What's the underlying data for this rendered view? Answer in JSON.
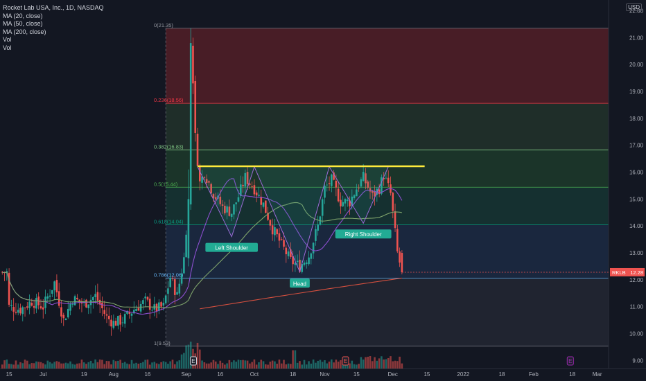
{
  "legend": {
    "title": "Rocket Lab USA, Inc., 1D, NASDAQ",
    "indicators": [
      "MA (20, close)",
      "MA (50, close)",
      "MA (200, close)",
      "Vol",
      "Vol"
    ]
  },
  "currency": "USD",
  "chart_data": {
    "type": "candlestick",
    "symbol": "RKLB",
    "last_price": "12.28",
    "ylim": [
      8.7,
      22.4
    ],
    "price_ticks": [
      "22.00",
      "21.00",
      "20.00",
      "19.00",
      "18.00",
      "17.00",
      "16.00",
      "15.00",
      "14.00",
      "13.00",
      "12.00",
      "11.00",
      "10.00",
      "9.00"
    ],
    "x_ticks": [
      {
        "label": "15",
        "day": 0
      },
      {
        "label": "Jul",
        "day": 15
      },
      {
        "label": "19",
        "day": 33
      },
      {
        "label": "Aug",
        "day": 46
      },
      {
        "label": "16",
        "day": 61
      },
      {
        "label": "Sep",
        "day": 78
      },
      {
        "label": "16",
        "day": 93
      },
      {
        "label": "Oct",
        "day": 108
      },
      {
        "label": "18",
        "day": 125
      },
      {
        "label": "Nov",
        "day": 139
      },
      {
        "label": "15",
        "day": 153
      },
      {
        "label": "Dec",
        "day": 169
      },
      {
        "label": "15",
        "day": 184
      },
      {
        "label": "2022",
        "day": 200
      },
      {
        "label": "18",
        "day": 217
      },
      {
        "label": "Feb",
        "day": 231
      },
      {
        "label": "18",
        "day": 248
      },
      {
        "label": "Mar",
        "day": 259
      }
    ],
    "x_range_days": [
      -4,
      264
    ],
    "fib_levels": [
      {
        "label": "0(21.35)",
        "value": 21.35
      },
      {
        "label": "0.236(18.56)",
        "value": 18.56
      },
      {
        "label": "0.382(16.83)",
        "value": 16.83
      },
      {
        "label": "0.5(15.44)",
        "value": 15.44
      },
      {
        "label": "0.618(14.04)",
        "value": 14.04
      },
      {
        "label": "0.786(12.06)",
        "value": 12.06
      },
      {
        "label": "1(9.53)",
        "value": 9.53
      }
    ],
    "fib_zone_colors": [
      "#5b2028",
      "#24372c",
      "#1f3f2c",
      "#173a36",
      "#1d2d48",
      "#262a36"
    ],
    "neckline": {
      "value": 16.22,
      "from_day": 83,
      "to_day": 183,
      "color": "#ffeb3b"
    },
    "annotations": [
      {
        "label": "Left Shoulder",
        "day": 98,
        "value": 13.55
      },
      {
        "label": "Head",
        "day": 128,
        "value": 12.22
      },
      {
        "label": "Right Shoulder",
        "day": 156,
        "value": 14.05
      }
    ],
    "pattern_path": [
      {
        "day": 83,
        "value": 16.2
      },
      {
        "day": 98,
        "value": 13.6
      },
      {
        "day": 108,
        "value": 16.2
      },
      {
        "day": 128,
        "value": 12.3
      },
      {
        "day": 141,
        "value": 16.2
      },
      {
        "day": 156,
        "value": 14.1
      },
      {
        "day": 167,
        "value": 16.2
      }
    ],
    "anchors": [
      {
        "day": 0,
        "value": 11.0
      },
      {
        "day": 5,
        "value": 10.9
      },
      {
        "day": 10,
        "value": 11.2
      },
      {
        "day": 15,
        "value": 11.0
      },
      {
        "day": 20,
        "value": 11.9
      },
      {
        "day": 24,
        "value": 10.5
      },
      {
        "day": 28,
        "value": 11.3
      },
      {
        "day": 33,
        "value": 11.1
      },
      {
        "day": 38,
        "value": 11.4
      },
      {
        "day": 43,
        "value": 10.6
      },
      {
        "day": 46,
        "value": 10.4
      },
      {
        "day": 50,
        "value": 10.5
      },
      {
        "day": 55,
        "value": 10.9
      },
      {
        "day": 60,
        "value": 11.2
      },
      {
        "day": 64,
        "value": 10.9
      },
      {
        "day": 68,
        "value": 11.0
      },
      {
        "day": 71,
        "value": 12.1
      },
      {
        "day": 74,
        "value": 11.4
      },
      {
        "day": 77,
        "value": 12.8
      },
      {
        "day": 79,
        "value": 15.0
      },
      {
        "day": 80,
        "value": 20.5
      },
      {
        "day": 81,
        "value": 19.5
      },
      {
        "day": 82,
        "value": 17.3
      },
      {
        "day": 84,
        "value": 15.6
      },
      {
        "day": 86,
        "value": 16.0
      },
      {
        "day": 90,
        "value": 15.2
      },
      {
        "day": 94,
        "value": 14.7
      },
      {
        "day": 98,
        "value": 14.5
      },
      {
        "day": 101,
        "value": 15.1
      },
      {
        "day": 104,
        "value": 15.8
      },
      {
        "day": 108,
        "value": 15.4
      },
      {
        "day": 112,
        "value": 14.8
      },
      {
        "day": 116,
        "value": 13.9
      },
      {
        "day": 120,
        "value": 13.3
      },
      {
        "day": 124,
        "value": 12.7
      },
      {
        "day": 128,
        "value": 12.5
      },
      {
        "day": 132,
        "value": 12.9
      },
      {
        "day": 136,
        "value": 14.0
      },
      {
        "day": 139,
        "value": 15.4
      },
      {
        "day": 142,
        "value": 15.7
      },
      {
        "day": 146,
        "value": 14.9
      },
      {
        "day": 150,
        "value": 14.9
      },
      {
        "day": 153,
        "value": 15.4
      },
      {
        "day": 156,
        "value": 15.8
      },
      {
        "day": 160,
        "value": 15.1
      },
      {
        "day": 163,
        "value": 15.4
      },
      {
        "day": 165,
        "value": 15.9
      },
      {
        "day": 168,
        "value": 15.2
      },
      {
        "day": 171,
        "value": 13.0
      },
      {
        "day": 173,
        "value": 12.28
      }
    ],
    "ma_colors": {
      "ma20": "#8c4fd0",
      "ma50": "#7ea36b",
      "ma200": "#d6503f"
    },
    "candle_colors": {
      "up": "#26a69a",
      "down": "#ef5350"
    },
    "event_markers": [
      {
        "label": "E",
        "day": 81,
        "color": "#d1d4dc"
      },
      {
        "label": "E",
        "day": 148,
        "color": "#ef5350"
      },
      {
        "label": "E",
        "day": 247,
        "color": "#9c27b0"
      }
    ]
  }
}
